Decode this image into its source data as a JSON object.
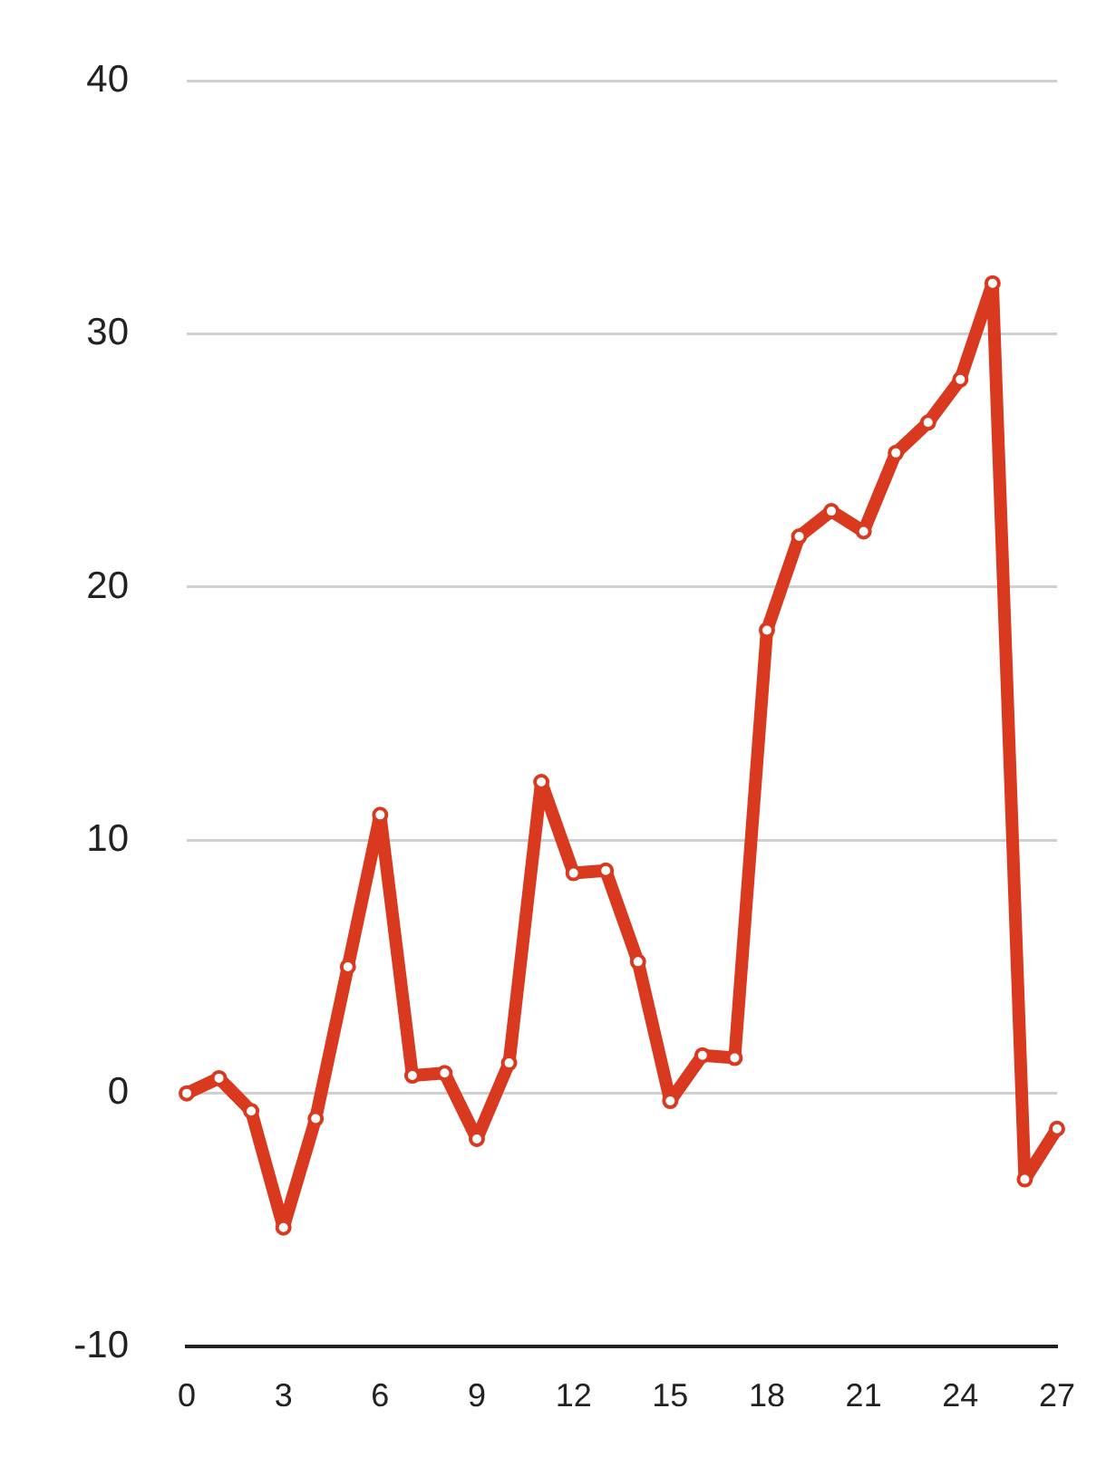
{
  "chart_data": {
    "type": "line",
    "x": [
      0,
      1,
      2,
      3,
      4,
      5,
      6,
      7,
      8,
      9,
      10,
      11,
      12,
      13,
      14,
      15,
      16,
      17,
      18,
      19,
      20,
      21,
      22,
      23,
      24,
      25,
      26,
      27
    ],
    "values": [
      0.0,
      0.6,
      -0.7,
      -5.3,
      -1.0,
      5.0,
      11.0,
      0.7,
      0.8,
      -1.8,
      1.2,
      12.3,
      8.7,
      8.8,
      5.2,
      -0.3,
      1.5,
      1.4,
      18.3,
      22.0,
      23.0,
      22.2,
      25.3,
      26.5,
      28.2,
      32.0,
      -3.4,
      -1.4
    ],
    "color": "#d9391f",
    "xlim": [
      0,
      27
    ],
    "xticks": [
      0,
      3,
      6,
      9,
      12,
      15,
      18,
      21,
      24,
      27
    ],
    "ylim": [
      -10,
      40
    ],
    "yticks": [
      -10,
      0,
      10,
      20,
      30,
      40
    ],
    "grid": "y",
    "marker": "circle",
    "line_style": "solid"
  }
}
